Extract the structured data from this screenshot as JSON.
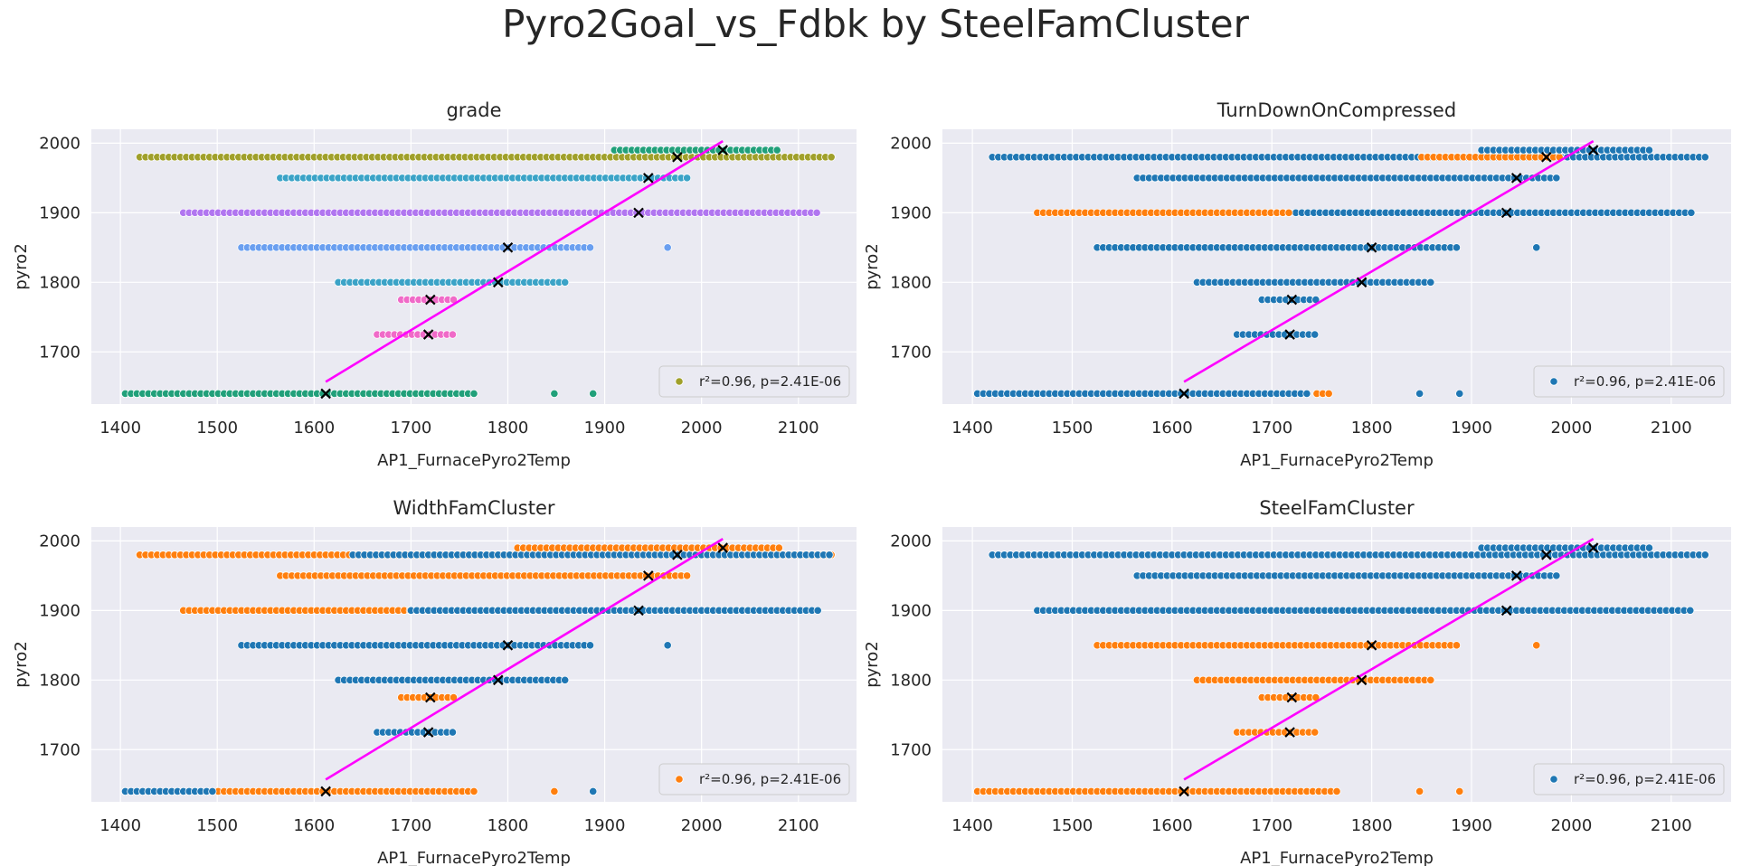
{
  "figure": {
    "suptitle": "Pyro2Goal_vs_Fdbk by SteelFamCluster"
  },
  "chart_data": [
    {
      "type": "scatter",
      "title": "grade",
      "xlabel": "AP1_FurnacePyro2Temp",
      "ylabel": "pyro2",
      "xlim": [
        1370,
        2160
      ],
      "ylim": [
        1625,
        2020
      ],
      "xticks": [
        1400,
        1500,
        1600,
        1700,
        1800,
        1900,
        2000,
        2100
      ],
      "yticks": [
        1700,
        1800,
        1900,
        2000
      ],
      "legend": {
        "label": "r²=0.96, p=2.41E-06",
        "color": "#a0a02a",
        "position": "lower-right"
      },
      "fit_line": {
        "x": [
          1612,
          2022
        ],
        "y": [
          1657,
          2003
        ],
        "color": "#ff00ff"
      },
      "goal_marks": {
        "x": [
          1612,
          1718,
          1720,
          1790,
          1800,
          1935,
          1945,
          1975,
          2022
        ],
        "y": [
          1640,
          1725,
          1775,
          1800,
          1850,
          1900,
          1950,
          1980,
          1990
        ]
      },
      "series": [
        {
          "name": "g1",
          "color": "#21a07a",
          "y": 1640,
          "x_range": [
            1405,
            1765
          ],
          "extra_x": [
            1848,
            1888
          ]
        },
        {
          "name": "g2",
          "color": "#a0a02a",
          "y": 1980,
          "x_range": [
            1420,
            2135
          ],
          "extra_x": []
        },
        {
          "name": "g3",
          "color": "#b176f0",
          "y": 1900,
          "x_range": [
            1465,
            2120
          ],
          "extra_x": []
        },
        {
          "name": "g4",
          "color": "#3ba3c7",
          "y": 1800,
          "x_range": [
            1625,
            1860
          ],
          "extra_x": []
        },
        {
          "name": "g5",
          "color": "#6a9ff0",
          "y": 1850,
          "x_range": [
            1525,
            1890
          ],
          "extra_x": [
            1965
          ]
        },
        {
          "name": "g6",
          "color": "#f06ac8",
          "y": 1775,
          "x_range": [
            1690,
            1745
          ],
          "extra_x": []
        },
        {
          "name": "g7",
          "color": "#f06ac8",
          "y": 1725,
          "x_range": [
            1665,
            1745
          ],
          "extra_x": []
        },
        {
          "name": "g8",
          "color": "#3ba3c7",
          "y": 1950,
          "x_range": [
            1565,
            1990
          ],
          "extra_x": []
        },
        {
          "name": "g9",
          "color": "#21a07a",
          "y": 1990,
          "x_range": [
            1910,
            2080
          ],
          "extra_x": []
        }
      ]
    },
    {
      "type": "scatter",
      "title": "TurnDownOnCompressed",
      "xlabel": "AP1_FurnacePyro2Temp",
      "ylabel": "pyro2",
      "xlim": [
        1370,
        2160
      ],
      "ylim": [
        1625,
        2020
      ],
      "xticks": [
        1400,
        1500,
        1600,
        1700,
        1800,
        1900,
        2000,
        2100
      ],
      "yticks": [
        1700,
        1800,
        1900,
        2000
      ],
      "legend": {
        "label": "r²=0.96, p=2.41E-06",
        "color": "#1f77b4",
        "position": "lower-right"
      },
      "fit_line": {
        "x": [
          1612,
          2022
        ],
        "y": [
          1657,
          2003
        ],
        "color": "#ff00ff"
      },
      "goal_marks": {
        "x": [
          1612,
          1718,
          1720,
          1790,
          1800,
          1935,
          1945,
          1975,
          2022
        ],
        "y": [
          1640,
          1725,
          1775,
          1800,
          1850,
          1900,
          1950,
          1980,
          1990
        ]
      },
      "series": [
        {
          "name": "t1",
          "color": "#1f77b4",
          "y": 1640,
          "x_range": [
            1405,
            1740
          ],
          "extra_x": [
            1848,
            1888
          ]
        },
        {
          "name": "t2",
          "color": "#ff7f0e",
          "y": 1640,
          "x_range": [
            1745,
            1762
          ],
          "extra_x": []
        },
        {
          "name": "t3",
          "color": "#1f77b4",
          "y": 1980,
          "x_range": [
            1420,
            2135
          ],
          "extra_x": []
        },
        {
          "name": "t4",
          "color": "#ff7f0e",
          "y": 1980,
          "x_range": [
            1850,
            1990
          ],
          "extra_x": []
        },
        {
          "name": "t5",
          "color": "#1f77b4",
          "y": 1900,
          "x_range": [
            1700,
            2120
          ],
          "extra_x": []
        },
        {
          "name": "t6",
          "color": "#ff7f0e",
          "y": 1900,
          "x_range": [
            1465,
            1720
          ],
          "extra_x": []
        },
        {
          "name": "t7",
          "color": "#1f77b4",
          "y": 1850,
          "x_range": [
            1525,
            1890
          ],
          "extra_x": [
            1965
          ]
        },
        {
          "name": "t8",
          "color": "#1f77b4",
          "y": 1800,
          "x_range": [
            1625,
            1860
          ],
          "extra_x": []
        },
        {
          "name": "t9",
          "color": "#1f77b4",
          "y": 1775,
          "x_range": [
            1690,
            1745
          ],
          "extra_x": []
        },
        {
          "name": "t10",
          "color": "#1f77b4",
          "y": 1725,
          "x_range": [
            1665,
            1745
          ],
          "extra_x": []
        },
        {
          "name": "t11",
          "color": "#1f77b4",
          "y": 1950,
          "x_range": [
            1565,
            1990
          ],
          "extra_x": []
        },
        {
          "name": "t12",
          "color": "#1f77b4",
          "y": 1990,
          "x_range": [
            1910,
            2080
          ],
          "extra_x": []
        }
      ]
    },
    {
      "type": "scatter",
      "title": "WidthFamCluster",
      "xlabel": "AP1_FurnacePyro2Temp",
      "ylabel": "pyro2",
      "xlim": [
        1370,
        2160
      ],
      "ylim": [
        1625,
        2020
      ],
      "xticks": [
        1400,
        1500,
        1600,
        1700,
        1800,
        1900,
        2000,
        2100
      ],
      "yticks": [
        1700,
        1800,
        1900,
        2000
      ],
      "legend": {
        "label": "r²=0.96, p=2.41E-06",
        "color": "#ff7f0e",
        "position": "lower-right"
      },
      "fit_line": {
        "x": [
          1612,
          2022
        ],
        "y": [
          1657,
          2003
        ],
        "color": "#ff00ff"
      },
      "goal_marks": {
        "x": [
          1612,
          1718,
          1720,
          1790,
          1800,
          1935,
          1945,
          1975,
          2022
        ],
        "y": [
          1640,
          1725,
          1775,
          1800,
          1850,
          1900,
          1950,
          1980,
          1990
        ]
      },
      "series": [
        {
          "name": "w1",
          "color": "#ff7f0e",
          "y": 1640,
          "x_range": [
            1405,
            1765
          ],
          "extra_x": [
            1848
          ]
        },
        {
          "name": "w2",
          "color": "#1f77b4",
          "y": 1640,
          "x_range": [
            1405,
            1500
          ],
          "extra_x": [
            1888
          ]
        },
        {
          "name": "w3",
          "color": "#ff7f0e",
          "y": 1980,
          "x_range": [
            1420,
            2135
          ],
          "extra_x": []
        },
        {
          "name": "w4",
          "color": "#1f77b4",
          "y": 1980,
          "x_range": [
            1640,
            2135
          ],
          "extra_x": []
        },
        {
          "name": "w5",
          "color": "#ff7f0e",
          "y": 1900,
          "x_range": [
            1465,
            2060
          ],
          "extra_x": []
        },
        {
          "name": "w6",
          "color": "#1f77b4",
          "y": 1900,
          "x_range": [
            1700,
            2120
          ],
          "extra_x": []
        },
        {
          "name": "w7",
          "color": "#1f77b4",
          "y": 1850,
          "x_range": [
            1525,
            1890
          ],
          "extra_x": [
            1965
          ]
        },
        {
          "name": "w8",
          "color": "#1f77b4",
          "y": 1800,
          "x_range": [
            1625,
            1860
          ],
          "extra_x": []
        },
        {
          "name": "w9",
          "color": "#ff7f0e",
          "y": 1775,
          "x_range": [
            1690,
            1745
          ],
          "extra_x": []
        },
        {
          "name": "w10",
          "color": "#1f77b4",
          "y": 1725,
          "x_range": [
            1665,
            1745
          ],
          "extra_x": []
        },
        {
          "name": "w11",
          "color": "#ff7f0e",
          "y": 1950,
          "x_range": [
            1565,
            1990
          ],
          "extra_x": []
        },
        {
          "name": "w12",
          "color": "#ff7f0e",
          "y": 1990,
          "x_range": [
            1810,
            2080
          ],
          "extra_x": []
        }
      ]
    },
    {
      "type": "scatter",
      "title": "SteelFamCluster",
      "xlabel": "AP1_FurnacePyro2Temp",
      "ylabel": "pyro2",
      "xlim": [
        1370,
        2160
      ],
      "ylim": [
        1625,
        2020
      ],
      "xticks": [
        1400,
        1500,
        1600,
        1700,
        1800,
        1900,
        2000,
        2100
      ],
      "yticks": [
        1700,
        1800,
        1900,
        2000
      ],
      "legend": {
        "label": "r²=0.96, p=2.41E-06",
        "color": "#1f77b4",
        "position": "lower-right"
      },
      "fit_line": {
        "x": [
          1612,
          2022
        ],
        "y": [
          1657,
          2003
        ],
        "color": "#ff00ff"
      },
      "goal_marks": {
        "x": [
          1612,
          1718,
          1720,
          1790,
          1800,
          1935,
          1945,
          1975,
          2022
        ],
        "y": [
          1640,
          1725,
          1775,
          1800,
          1850,
          1900,
          1950,
          1980,
          1990
        ]
      },
      "series": [
        {
          "name": "s1",
          "color": "#ff7f0e",
          "y": 1640,
          "x_range": [
            1405,
            1765
          ],
          "extra_x": [
            1848,
            1888
          ]
        },
        {
          "name": "s2",
          "color": "#1f77b4",
          "y": 1980,
          "x_range": [
            1420,
            2135
          ],
          "extra_x": []
        },
        {
          "name": "s3",
          "color": "#1f77b4",
          "y": 1900,
          "x_range": [
            1465,
            2120
          ],
          "extra_x": []
        },
        {
          "name": "s4",
          "color": "#ff7f0e",
          "y": 1850,
          "x_range": [
            1525,
            1890
          ],
          "extra_x": [
            1965
          ]
        },
        {
          "name": "s5",
          "color": "#ff7f0e",
          "y": 1800,
          "x_range": [
            1625,
            1860
          ],
          "extra_x": []
        },
        {
          "name": "s6",
          "color": "#ff7f0e",
          "y": 1775,
          "x_range": [
            1690,
            1745
          ],
          "extra_x": []
        },
        {
          "name": "s7",
          "color": "#ff7f0e",
          "y": 1725,
          "x_range": [
            1665,
            1745
          ],
          "extra_x": []
        },
        {
          "name": "s8",
          "color": "#1f77b4",
          "y": 1950,
          "x_range": [
            1565,
            1990
          ],
          "extra_x": []
        },
        {
          "name": "s9",
          "color": "#1f77b4",
          "y": 1990,
          "x_range": [
            1910,
            2080
          ],
          "extra_x": []
        }
      ]
    }
  ]
}
